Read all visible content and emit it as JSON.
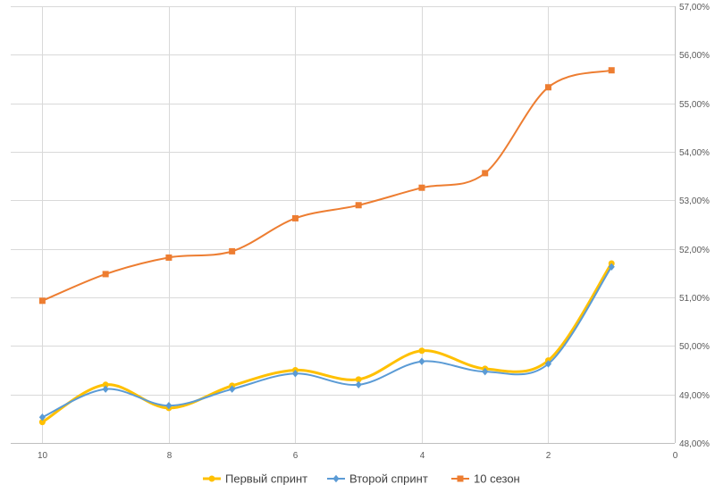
{
  "chart_data": {
    "type": "line",
    "title": "",
    "xlabel": "",
    "ylabel": "",
    "x": [
      10,
      9,
      8,
      7,
      6,
      5,
      4,
      3,
      2,
      1
    ],
    "xlim": [
      10.5,
      0
    ],
    "x_ticks": [
      "10",
      "8",
      "6",
      "4",
      "2",
      "0"
    ],
    "ylim": [
      48,
      57
    ],
    "y_ticks": [
      "48,00%",
      "49,00%",
      "50,00%",
      "51,00%",
      "52,00%",
      "53,00%",
      "54,00%",
      "55,00%",
      "56,00%",
      "57,00%"
    ],
    "y_axis_position": "right",
    "grid": true,
    "legend_position": "bottom",
    "smooth": true,
    "series": [
      {
        "name": "Первый спринт",
        "color": "#FFC000",
        "marker": "circle",
        "values": [
          48.43,
          49.2,
          48.72,
          49.18,
          49.5,
          49.31,
          49.9,
          49.53,
          49.7,
          51.7
        ]
      },
      {
        "name": "Второй спринт",
        "color": "#5B9BD5",
        "marker": "diamond",
        "values": [
          48.53,
          49.11,
          48.77,
          49.11,
          49.43,
          49.2,
          49.68,
          49.47,
          49.63,
          51.63
        ]
      },
      {
        "name": "10 сезон",
        "color": "#ED7D31",
        "marker": "square",
        "values": [
          50.93,
          51.48,
          51.82,
          51.95,
          52.63,
          52.9,
          53.26,
          53.56,
          55.33,
          55.68
        ]
      }
    ]
  }
}
